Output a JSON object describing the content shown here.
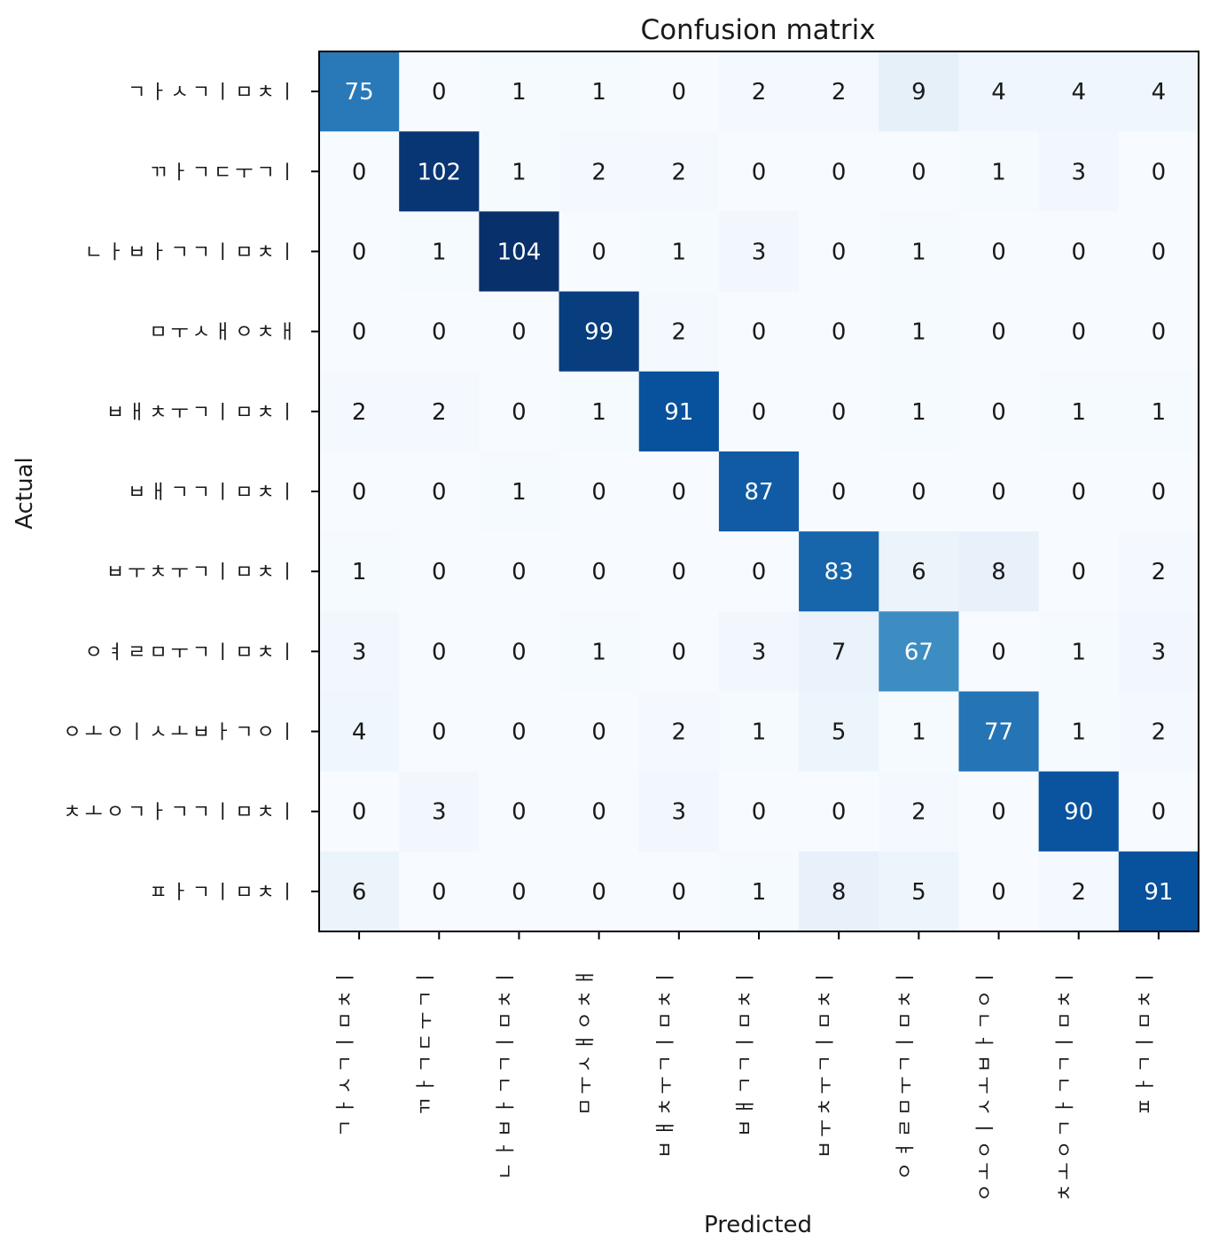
{
  "chart_data": {
    "type": "heatmap",
    "title": "Confusion matrix",
    "xlabel": "Predicted",
    "ylabel": "Actual",
    "colormap": "Blues",
    "color_min_hex": "#f7fbff",
    "color_max_hex": "#08306b",
    "value_range": [
      0,
      104
    ],
    "labels": [
      "ㄱㅏㅅㄱㅣㅁㅊㅣ",
      "ㄲㅏㄱㄷㅜㄱㅣ",
      "ㄴㅏㅂㅏㄱㄱㅣㅁㅊㅣ",
      "ㅁㅜㅅㅐㅇㅊㅐ",
      "ㅂㅐㅊㅜㄱㅣㅁㅊㅣ",
      "ㅂㅐㄱㄱㅣㅁㅊㅣ",
      "ㅂㅜㅊㅜㄱㅣㅁㅊㅣ",
      "ㅇㅕㄹㅁㅜㄱㅣㅁㅊㅣ",
      "ㅇㅗㅇㅣㅅㅗㅂㅏㄱㅇㅣ",
      "ㅊㅗㅇㄱㅏㄱㄱㅣㅁㅊㅣ",
      "ㅍㅏㄱㅣㅁㅊㅣ"
    ],
    "matrix": [
      [
        75,
        0,
        1,
        1,
        0,
        2,
        2,
        9,
        4,
        4,
        4
      ],
      [
        0,
        102,
        1,
        2,
        2,
        0,
        0,
        0,
        1,
        3,
        0
      ],
      [
        0,
        1,
        104,
        0,
        1,
        3,
        0,
        1,
        0,
        0,
        0
      ],
      [
        0,
        0,
        0,
        99,
        2,
        0,
        0,
        1,
        0,
        0,
        0
      ],
      [
        2,
        2,
        0,
        1,
        91,
        0,
        0,
        1,
        0,
        1,
        1
      ],
      [
        0,
        0,
        1,
        0,
        0,
        87,
        0,
        0,
        0,
        0,
        0
      ],
      [
        1,
        0,
        0,
        0,
        0,
        0,
        83,
        6,
        8,
        0,
        2
      ],
      [
        3,
        0,
        0,
        1,
        0,
        3,
        7,
        67,
        0,
        1,
        3
      ],
      [
        4,
        0,
        0,
        0,
        2,
        1,
        5,
        1,
        77,
        1,
        2
      ],
      [
        0,
        3,
        0,
        0,
        3,
        0,
        0,
        2,
        0,
        90,
        0
      ],
      [
        6,
        0,
        0,
        0,
        0,
        1,
        8,
        5,
        0,
        2,
        91
      ]
    ]
  }
}
